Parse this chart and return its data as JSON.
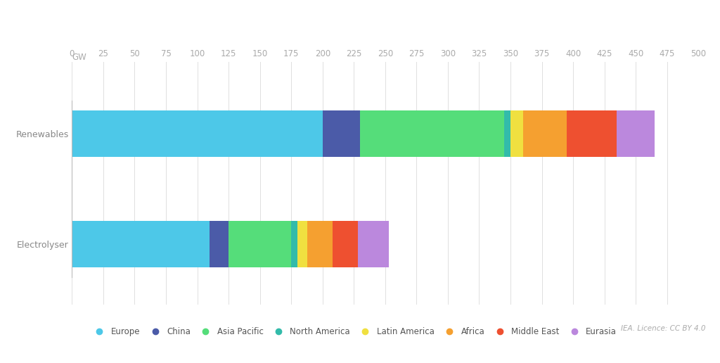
{
  "categories": [
    "Renewables",
    "Electrolyser"
  ],
  "regions": [
    "Europe",
    "China",
    "Asia Pacific",
    "North America",
    "Latin America",
    "Africa",
    "Middle East",
    "Eurasia"
  ],
  "colors": [
    "#4DC8E8",
    "#4B5BA8",
    "#55DD7A",
    "#33BBAA",
    "#F0E040",
    "#F5A030",
    "#EE5030",
    "#BB88DD"
  ],
  "values": {
    "Renewables": [
      200,
      30,
      115,
      5,
      10,
      35,
      40,
      30
    ],
    "Electrolyser": [
      110,
      15,
      50,
      5,
      8,
      20,
      20,
      25
    ]
  },
  "xlim": [
    0,
    500
  ],
  "xticks": [
    0,
    25,
    50,
    75,
    100,
    125,
    150,
    175,
    200,
    225,
    250,
    275,
    300,
    325,
    350,
    375,
    400,
    425,
    450,
    475,
    500
  ],
  "ylabel_gw": "GW",
  "background_color": "#FFFFFF",
  "grid_color": "#E0E0E0",
  "axis_color": "#BBBBBB",
  "tick_label_color": "#AAAAAA",
  "bar_label_color": "#888888",
  "credit": "IEA. Licence: CC BY 4.0"
}
